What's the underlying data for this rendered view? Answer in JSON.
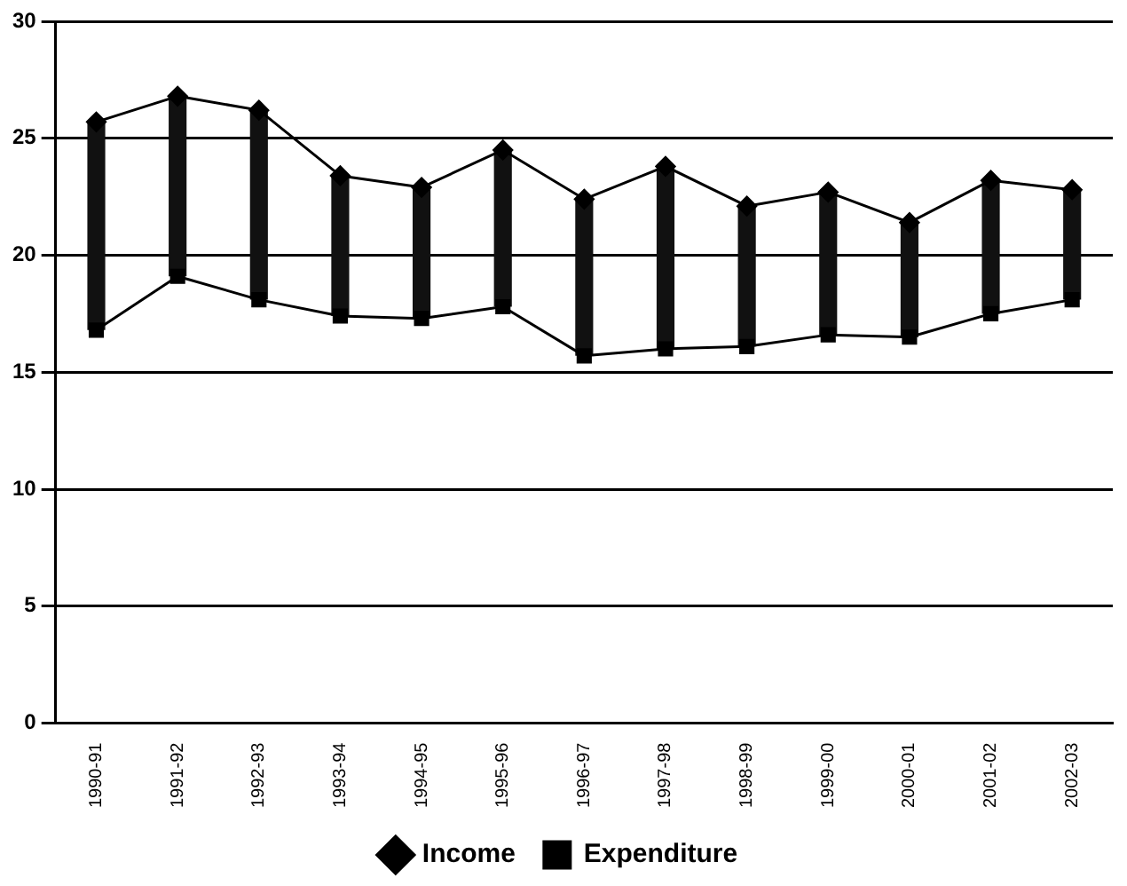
{
  "chart_data": {
    "type": "line",
    "categories": [
      "1990-91",
      "1991-92",
      "1992-93",
      "1993-94",
      "1994-95",
      "1995-96",
      "1996-97",
      "1997-98",
      "1998-99",
      "1999-00",
      "2000-01",
      "2001-02",
      "2002-03"
    ],
    "series": [
      {
        "type": "bar",
        "color": "#111111",
        "base": [
          16.8,
          19.1,
          18.1,
          17.4,
          17.3,
          17.8,
          15.7,
          16.0,
          16.1,
          16.6,
          16.5,
          17.5,
          18.1
        ],
        "values": [
          8.9,
          7.7,
          8.1,
          6.0,
          5.6,
          6.7,
          6.7,
          7.8,
          6.0,
          6.1,
          4.9,
          5.7,
          4.7
        ]
      },
      {
        "name": "Income",
        "color": "#000000",
        "marker": "diamond",
        "values": [
          25.7,
          26.8,
          26.2,
          23.4,
          22.9,
          24.5,
          22.4,
          23.8,
          22.1,
          22.7,
          21.4,
          23.2,
          22.8
        ]
      },
      {
        "name": "Expenditure",
        "color": "#000000",
        "marker": "square",
        "values": [
          16.8,
          19.1,
          18.1,
          17.4,
          17.3,
          17.8,
          15.7,
          16.0,
          16.1,
          16.6,
          16.5,
          17.5,
          18.1
        ]
      }
    ],
    "ylim": [
      0,
      30
    ],
    "yticks": [
      0,
      5,
      10,
      15,
      20,
      25,
      30
    ],
    "grid": "y",
    "legend": "bottom"
  }
}
